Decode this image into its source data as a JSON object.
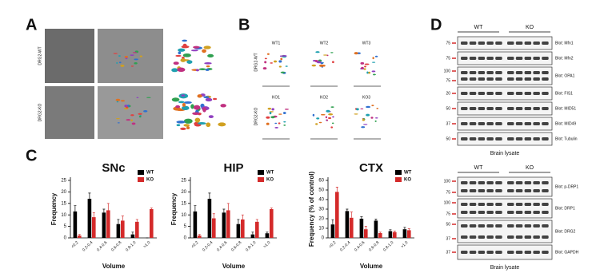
{
  "panel_labels": [
    "A",
    "B",
    "C",
    "D"
  ],
  "panel_a": {
    "row_labels": [
      "DRG2-WT",
      "DRG2-KO"
    ]
  },
  "panel_b": {
    "row_labels": [
      "DRG2-WT",
      "DRG2-KO"
    ],
    "wt_labels": [
      "WT1",
      "WT2",
      "WT3"
    ],
    "ko_labels": [
      "KO1",
      "KO2",
      "KO3"
    ]
  },
  "chart_data": [
    {
      "type": "bar",
      "title": "SNc",
      "x_label": "Volume",
      "y_label": "Frequency",
      "categories": [
        "<0.2",
        "0.2-0.4",
        "0.4-0.6",
        "0.6-0.8",
        "0.8-1.0",
        ">1.0"
      ],
      "series": [
        {
          "name": "WT",
          "color": "#000000",
          "values": [
            11.5,
            17,
            11,
            6,
            1.5,
            0
          ],
          "errors": [
            2.5,
            2.5,
            1.5,
            2,
            1,
            0
          ]
        },
        {
          "name": "KO",
          "color": "#d42a2a",
          "values": [
            1,
            9,
            12,
            7.5,
            7,
            12.5
          ],
          "errors": [
            0.5,
            2,
            3,
            2,
            1,
            0.5
          ]
        }
      ],
      "ylim": [
        0,
        25
      ],
      "yticks": [
        0,
        5,
        10,
        15,
        20,
        25
      ],
      "legend": "upper right"
    },
    {
      "type": "bar",
      "title": "HIP",
      "x_label": "Volume",
      "y_label": "Frequency",
      "categories": [
        "<0.2",
        "0.2-0.4",
        "0.4-0.6",
        "0.6-0.8",
        "0.8-1.0",
        ">1.0"
      ],
      "series": [
        {
          "name": "WT",
          "color": "#000000",
          "values": [
            11.5,
            17,
            11,
            6,
            1.5,
            2
          ],
          "errors": [
            2.5,
            2.5,
            1.5,
            2,
            1,
            0.5
          ]
        },
        {
          "name": "KO",
          "color": "#d42a2a",
          "values": [
            1,
            8.5,
            12,
            8,
            7,
            12.5
          ],
          "errors": [
            0.5,
            2,
            3,
            2,
            1,
            0.5
          ]
        }
      ],
      "ylim": [
        0,
        25
      ],
      "yticks": [
        0,
        5,
        10,
        15,
        20,
        25
      ],
      "legend": "upper right"
    },
    {
      "type": "bar",
      "title": "CTX",
      "x_label": "Volume",
      "y_label": "Frequency (% of control)",
      "categories": [
        "<0.2",
        "0.2-0.4",
        "0.4-0.6",
        "0.6-0.8",
        "0.8-1.0",
        ">1.0"
      ],
      "series": [
        {
          "name": "WT",
          "color": "#000000",
          "values": [
            14,
            28,
            20,
            18,
            7,
            9
          ],
          "errors": [
            5,
            2,
            2,
            1.5,
            1.5,
            2
          ]
        },
        {
          "name": "KO",
          "color": "#d42a2a",
          "values": [
            48,
            21,
            9,
            5,
            6,
            8
          ],
          "errors": [
            5,
            6,
            3,
            1,
            1,
            1.5
          ]
        }
      ],
      "ylim": [
        0,
        60
      ],
      "yticks": [
        0,
        10,
        20,
        30,
        40,
        50,
        60
      ],
      "legend": "upper right"
    }
  ],
  "panel_d": {
    "blots": [
      {
        "groups": [
          "WT",
          "KO"
        ],
        "caption": "Brain lysate",
        "rows": [
          {
            "markers": [
              75
            ],
            "label": "Blot: Mfn1"
          },
          {
            "markers": [
              75
            ],
            "label": "Blot: Mfn2"
          },
          {
            "markers": [
              100,
              75
            ],
            "label": "Blot: OPA1"
          },
          {
            "markers": [
              20
            ],
            "label": "Blot: FIS1"
          },
          {
            "markers": [
              50
            ],
            "label": "Blot: MID51"
          },
          {
            "markers": [
              37
            ],
            "label": "Blot: MID49"
          },
          {
            "markers": [
              50
            ],
            "label": "Blot: Tubulin"
          }
        ]
      },
      {
        "groups": [
          "WT",
          "KO"
        ],
        "caption": "Brain lysate",
        "rows": [
          {
            "markers": [
              100,
              75
            ],
            "label": "Blot: p-DRP1"
          },
          {
            "markers": [
              100,
              75
            ],
            "label": "Blot: DRP1"
          },
          {
            "markers": [
              50,
              37
            ],
            "label": "Blot: DRG2"
          },
          {
            "markers": [
              37
            ],
            "label": "Blot: GAPDH"
          }
        ]
      }
    ]
  }
}
